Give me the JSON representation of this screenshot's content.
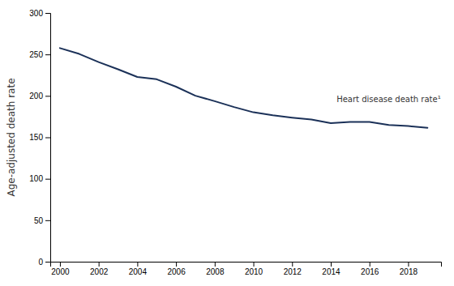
{
  "chart_data": {
    "type": "line",
    "x": [
      2000,
      2001,
      2002,
      2003,
      2004,
      2005,
      2006,
      2007,
      2008,
      2009,
      2010,
      2011,
      2012,
      2013,
      2014,
      2015,
      2016,
      2017,
      2018,
      2019
    ],
    "values": [
      257.6,
      250.6,
      240.8,
      232.1,
      222.8,
      220.0,
      211.1,
      200.2,
      193.6,
      186.5,
      180.2,
      176.6,
      173.8,
      171.5,
      167.0,
      168.5,
      168.5,
      165.0,
      163.6,
      161.5
    ],
    "color": "#1b3158",
    "ylabel": "Age-adjusted death rate",
    "ylim": [
      0,
      300
    ],
    "xlim": [
      1999.5,
      2019.7
    ],
    "yticks": [
      0,
      50,
      100,
      150,
      200,
      250,
      300
    ],
    "xticks": [
      2000,
      2002,
      2004,
      2006,
      2008,
      2010,
      2012,
      2014,
      2016,
      2018
    ],
    "annotations": [
      {
        "text": "Heart disease death rate¹",
        "x": 2014.3,
        "y": 195
      }
    ],
    "grid": false
  }
}
